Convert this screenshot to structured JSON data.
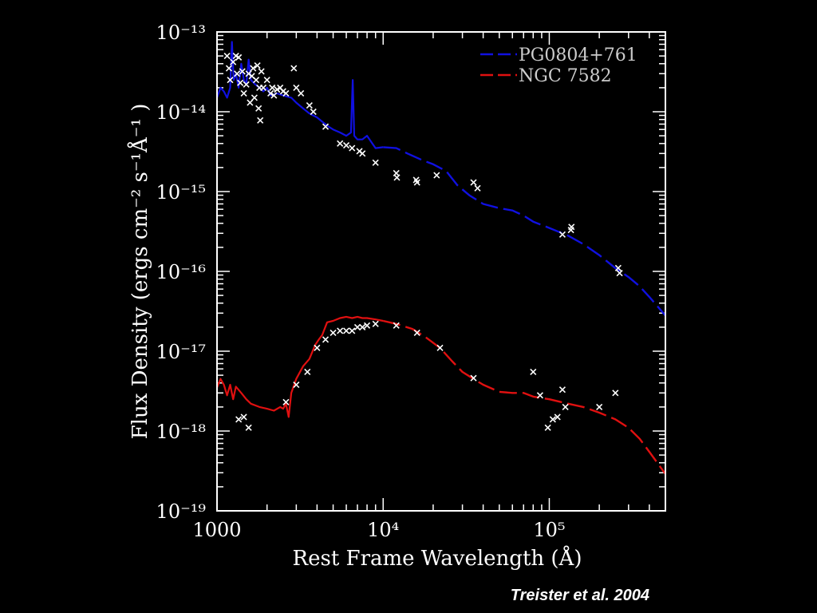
{
  "credit": "Treister et al. 2004",
  "chart_data": {
    "type": "line",
    "xlabel": "Rest Frame Wavelength (Å)",
    "ylabel": "Flux Density (ergs cm⁻² s⁻¹Å⁻¹ )",
    "x_scale": "log",
    "y_scale": "log",
    "xlim": [
      1000,
      500000
    ],
    "ylim": [
      1e-19,
      1e-13
    ],
    "x_tick_labels": [
      {
        "value": 1000,
        "label": "1000"
      },
      {
        "value": 10000,
        "label": "10⁴"
      },
      {
        "value": 100000,
        "label": "10⁵"
      }
    ],
    "y_tick_labels": [
      {
        "value": 1e-13,
        "label": "10⁻¹³"
      },
      {
        "value": 1e-14,
        "label": "10⁻¹⁴"
      },
      {
        "value": 1e-15,
        "label": "10⁻¹⁵"
      },
      {
        "value": 1e-16,
        "label": "10⁻¹⁶"
      },
      {
        "value": 1e-17,
        "label": "10⁻¹⁷"
      },
      {
        "value": 1e-18,
        "label": "10⁻¹⁸"
      },
      {
        "value": 1e-19,
        "label": "10⁻¹⁹"
      }
    ],
    "legend_position": "top-right",
    "series": [
      {
        "name": "PG0804+761",
        "color": "#1010e0",
        "style": "solid-then-dashed",
        "points": [
          [
            1000,
            1.5e-14
          ],
          [
            1050,
            2e-14
          ],
          [
            1100,
            1.8e-14
          ],
          [
            1150,
            1.5e-14
          ],
          [
            1200,
            2e-14
          ],
          [
            1230,
            7.5e-14
          ],
          [
            1260,
            2.5e-14
          ],
          [
            1300,
            3e-14
          ],
          [
            1350,
            2e-14
          ],
          [
            1400,
            4e-14
          ],
          [
            1450,
            2.5e-14
          ],
          [
            1500,
            2.2e-14
          ],
          [
            1550,
            4.5e-14
          ],
          [
            1600,
            2.5e-14
          ],
          [
            1700,
            2.2e-14
          ],
          [
            1800,
            2e-14
          ],
          [
            1900,
            1.8e-14
          ],
          [
            2000,
            2e-14
          ],
          [
            2100,
            1.6e-14
          ],
          [
            2300,
            1.7e-14
          ],
          [
            2500,
            1.6e-14
          ],
          [
            2800,
            1.5e-14
          ],
          [
            3000,
            1.3e-14
          ],
          [
            3300,
            1.1e-14
          ],
          [
            3600,
            9.5e-15
          ],
          [
            4000,
            8.5e-15
          ],
          [
            4300,
            7.5e-15
          ],
          [
            4700,
            6.5e-15
          ],
          [
            5000,
            6e-15
          ],
          [
            5500,
            5.5e-15
          ],
          [
            6000,
            5e-15
          ],
          [
            6400,
            5.5e-15
          ],
          [
            6560,
            2.5e-14
          ],
          [
            6700,
            5e-15
          ],
          [
            7000,
            4.5e-15
          ],
          [
            7500,
            4.5e-15
          ],
          [
            8000,
            5e-15
          ],
          [
            9000,
            3.5e-15
          ],
          [
            10000,
            3.6e-15
          ],
          [
            12000,
            3.5e-15
          ],
          [
            14000,
            3e-15
          ],
          [
            17000,
            2.5e-15
          ],
          [
            20000,
            2.2e-15
          ],
          [
            24000,
            1.8e-15
          ],
          [
            28000,
            1.2e-15
          ],
          [
            33000,
            9e-16
          ],
          [
            40000,
            7e-16
          ],
          [
            50000,
            6.2e-16
          ],
          [
            60000,
            5.8e-16
          ],
          [
            70000,
            5e-16
          ],
          [
            80000,
            4.2e-16
          ],
          [
            100000,
            3.5e-16
          ],
          [
            130000,
            2.8e-16
          ],
          [
            160000,
            2.2e-16
          ],
          [
            200000,
            1.6e-16
          ],
          [
            250000,
            1.1e-16
          ],
          [
            300000,
            8.5e-17
          ],
          [
            350000,
            6.5e-17
          ],
          [
            400000,
            4.8e-17
          ],
          [
            500000,
            2.8e-17
          ]
        ]
      },
      {
        "name": "NGC 7582",
        "color": "#e01010",
        "style": "solid-then-dashed",
        "points": [
          [
            1000,
            3.5e-18
          ],
          [
            1050,
            4.5e-18
          ],
          [
            1100,
            3.8e-18
          ],
          [
            1150,
            2.8e-18
          ],
          [
            1200,
            3.8e-18
          ],
          [
            1250,
            2.5e-18
          ],
          [
            1300,
            3.6e-18
          ],
          [
            1400,
            3e-18
          ],
          [
            1500,
            2.5e-18
          ],
          [
            1600,
            2.2e-18
          ],
          [
            1800,
            2e-18
          ],
          [
            2000,
            1.9e-18
          ],
          [
            2200,
            1.8e-18
          ],
          [
            2400,
            2e-18
          ],
          [
            2500,
            1.9e-18
          ],
          [
            2600,
            2.2e-18
          ],
          [
            2700,
            1.5e-18
          ],
          [
            2800,
            3e-18
          ],
          [
            3000,
            4.5e-18
          ],
          [
            3300,
            6.5e-18
          ],
          [
            3600,
            8e-18
          ],
          [
            3900,
            1.2e-17
          ],
          [
            4100,
            1.4e-17
          ],
          [
            4300,
            1.6e-17
          ],
          [
            4600,
            2.3e-17
          ],
          [
            5000,
            2.4e-17
          ],
          [
            5500,
            2.6e-17
          ],
          [
            6000,
            2.7e-17
          ],
          [
            6500,
            2.6e-17
          ],
          [
            7000,
            2.7e-17
          ],
          [
            7500,
            2.6e-17
          ],
          [
            8000,
            2.6e-17
          ],
          [
            9000,
            2.5e-17
          ],
          [
            10000,
            2.4e-17
          ],
          [
            12000,
            2.2e-17
          ],
          [
            15000,
            1.9e-17
          ],
          [
            18000,
            1.5e-17
          ],
          [
            22000,
            1.1e-17
          ],
          [
            26000,
            7.5e-18
          ],
          [
            30000,
            5.5e-18
          ],
          [
            35000,
            4.5e-18
          ],
          [
            40000,
            3.8e-18
          ],
          [
            50000,
            3.1e-18
          ],
          [
            60000,
            3e-18
          ],
          [
            70000,
            3e-18
          ],
          [
            80000,
            2.7e-18
          ],
          [
            100000,
            2.5e-18
          ],
          [
            130000,
            2.2e-18
          ],
          [
            160000,
            2e-18
          ],
          [
            200000,
            1.7e-18
          ],
          [
            250000,
            1.4e-18
          ],
          [
            300000,
            1.1e-18
          ],
          [
            350000,
            8e-19
          ],
          [
            400000,
            5.5e-19
          ],
          [
            500000,
            2.9e-19
          ]
        ]
      }
    ],
    "photometry": [
      {
        "name": "PG0804+761 photometry",
        "color": "#ffffff",
        "points": [
          [
            1150,
            5e-14
          ],
          [
            1180,
            3.5e-14
          ],
          [
            1200,
            2.5e-14
          ],
          [
            1250,
            4.2e-14
          ],
          [
            1300,
            5e-14
          ],
          [
            1320,
            3e-14
          ],
          [
            1350,
            4.8e-14
          ],
          [
            1380,
            2.3e-14
          ],
          [
            1420,
            3.2e-14
          ],
          [
            1450,
            1.7e-14
          ],
          [
            1500,
            2.2e-14
          ],
          [
            1550,
            3e-14
          ],
          [
            1580,
            1.3e-14
          ],
          [
            1620,
            2.8e-14
          ],
          [
            1650,
            3.5e-14
          ],
          [
            1680,
            1.5e-14
          ],
          [
            1720,
            2.5e-14
          ],
          [
            1750,
            3.8e-14
          ],
          [
            1780,
            1.1e-14
          ],
          [
            1800,
            2e-14
          ],
          [
            1820,
            7.8e-15
          ],
          [
            1850,
            3.2e-14
          ],
          [
            1900,
            2e-14
          ],
          [
            2000,
            2.5e-14
          ],
          [
            2100,
            1.7e-14
          ],
          [
            2150,
            2e-14
          ],
          [
            2200,
            1.6e-14
          ],
          [
            2300,
            1.9e-14
          ],
          [
            2400,
            2e-14
          ],
          [
            2500,
            1.8e-14
          ],
          [
            2600,
            1.7e-14
          ],
          [
            2900,
            3.5e-14
          ],
          [
            3000,
            2e-14
          ],
          [
            3200,
            1.7e-14
          ],
          [
            3600,
            1.2e-14
          ],
          [
            3800,
            1e-14
          ],
          [
            4500,
            6.5e-15
          ],
          [
            5500,
            4e-15
          ],
          [
            6000,
            3.8e-15
          ],
          [
            6500,
            3.5e-15
          ],
          [
            7200,
            3.2e-15
          ],
          [
            7500,
            3e-15
          ],
          [
            9000,
            2.3e-15
          ],
          [
            12000,
            1.7e-15
          ],
          [
            12100,
            1.5e-15
          ],
          [
            15800,
            1.4e-15
          ],
          [
            16000,
            1.3e-15
          ],
          [
            21000,
            1.6e-15
          ],
          [
            35000,
            1.3e-15
          ],
          [
            37000,
            1.1e-15
          ],
          [
            120000,
            2.9e-16
          ],
          [
            135000,
            3.3e-16
          ],
          [
            136000,
            3.6e-16
          ],
          [
            260000,
            1.1e-16
          ],
          [
            265000,
            9.5e-17
          ]
        ]
      },
      {
        "name": "NGC 7582 photometry",
        "color": "#ffffff",
        "points": [
          [
            1350,
            1.4e-18
          ],
          [
            1450,
            1.5e-18
          ],
          [
            1550,
            1.1e-18
          ],
          [
            2600,
            2.3e-18
          ],
          [
            3000,
            3.8e-18
          ],
          [
            3500,
            5.5e-18
          ],
          [
            4000,
            1.1e-17
          ],
          [
            4500,
            1.4e-17
          ],
          [
            5000,
            1.7e-17
          ],
          [
            5500,
            1.8e-17
          ],
          [
            6000,
            1.8e-17
          ],
          [
            6500,
            1.8e-17
          ],
          [
            7000,
            2e-17
          ],
          [
            7500,
            2e-17
          ],
          [
            8000,
            2.1e-17
          ],
          [
            9000,
            2.2e-17
          ],
          [
            12000,
            2.1e-17
          ],
          [
            16000,
            1.7e-17
          ],
          [
            22000,
            1.1e-17
          ],
          [
            35000,
            4.6e-18
          ],
          [
            80000,
            5.5e-18
          ],
          [
            88000,
            2.8e-18
          ],
          [
            98000,
            1.1e-18
          ],
          [
            105000,
            1.4e-18
          ],
          [
            112000,
            1.5e-18
          ],
          [
            120000,
            3.3e-18
          ],
          [
            125000,
            2e-18
          ],
          [
            200000,
            2e-18
          ],
          [
            250000,
            3e-18
          ]
        ]
      }
    ]
  }
}
